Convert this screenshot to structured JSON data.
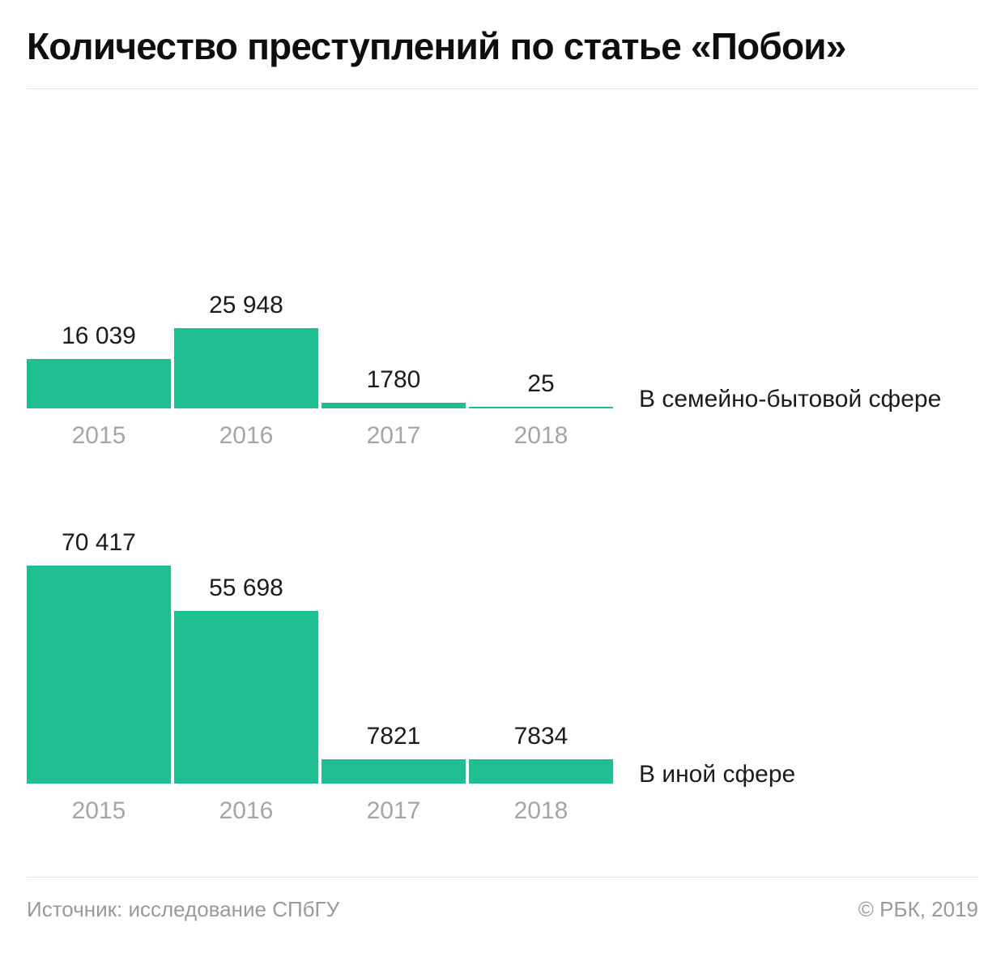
{
  "page": {
    "title": "Количество преступлений по статье «Побои»",
    "footer": {
      "source": "Источник: исследование СПбГУ",
      "copyright": "© РБК, 2019"
    }
  },
  "colors": {
    "bar": "#1fbf92",
    "value_label": "#1b1b1b",
    "year_label": "#a5a5a5",
    "footer_text": "#9a9a9a",
    "divider": "#e4e4e4"
  },
  "chart_data": [
    {
      "type": "bar",
      "series_label": "В семейно-бытовой сфере",
      "categories": [
        "2015",
        "2016",
        "2017",
        "2018"
      ],
      "values": [
        16039,
        25948,
        1780,
        25
      ],
      "value_labels": [
        "16 039",
        "25 948",
        "1780",
        "25"
      ],
      "ylim": [
        0,
        25948
      ],
      "grid": false,
      "legend_position": "right-of-baseline"
    },
    {
      "type": "bar",
      "series_label": "В иной сфере",
      "categories": [
        "2015",
        "2016",
        "2017",
        "2018"
      ],
      "values": [
        70417,
        55698,
        7821,
        7834
      ],
      "value_labels": [
        "70 417",
        "55 698",
        "7821",
        "7834"
      ],
      "ylim": [
        0,
        70417
      ],
      "grid": false,
      "legend_position": "right-of-baseline"
    }
  ]
}
